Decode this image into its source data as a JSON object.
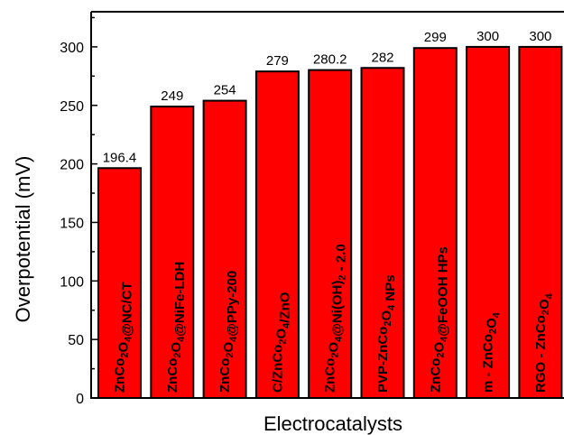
{
  "chart_data": {
    "type": "bar",
    "xlabel": "Electrocatalysts",
    "ylabel": "Overpotential (mV)",
    "ylim": [
      0,
      330
    ],
    "yticks": [
      0,
      50,
      100,
      150,
      200,
      250,
      300
    ],
    "grid": false,
    "bar_color": "#ff0000",
    "categories": [
      "ZnCo2O4@NC/CT",
      "ZnCo2O4@NiFe-LDH",
      "ZnCo2O4@PPy-200",
      "C/ZnCo2O4/ZnO",
      "ZnCo2O4@Ni(OH)2 - 2.0",
      "PVP-ZnCo2O4 NPs",
      "ZnCo2O4@FeOOH HPs",
      "m - ZnCo2O4",
      "RGO - ZnCo2O4"
    ],
    "values": [
      196.4,
      249,
      254,
      279,
      280.2,
      282,
      299,
      300,
      300
    ],
    "value_labels": [
      "196.4",
      "249",
      "254",
      "279",
      "280.2",
      "282",
      "299",
      "300",
      "300"
    ]
  }
}
